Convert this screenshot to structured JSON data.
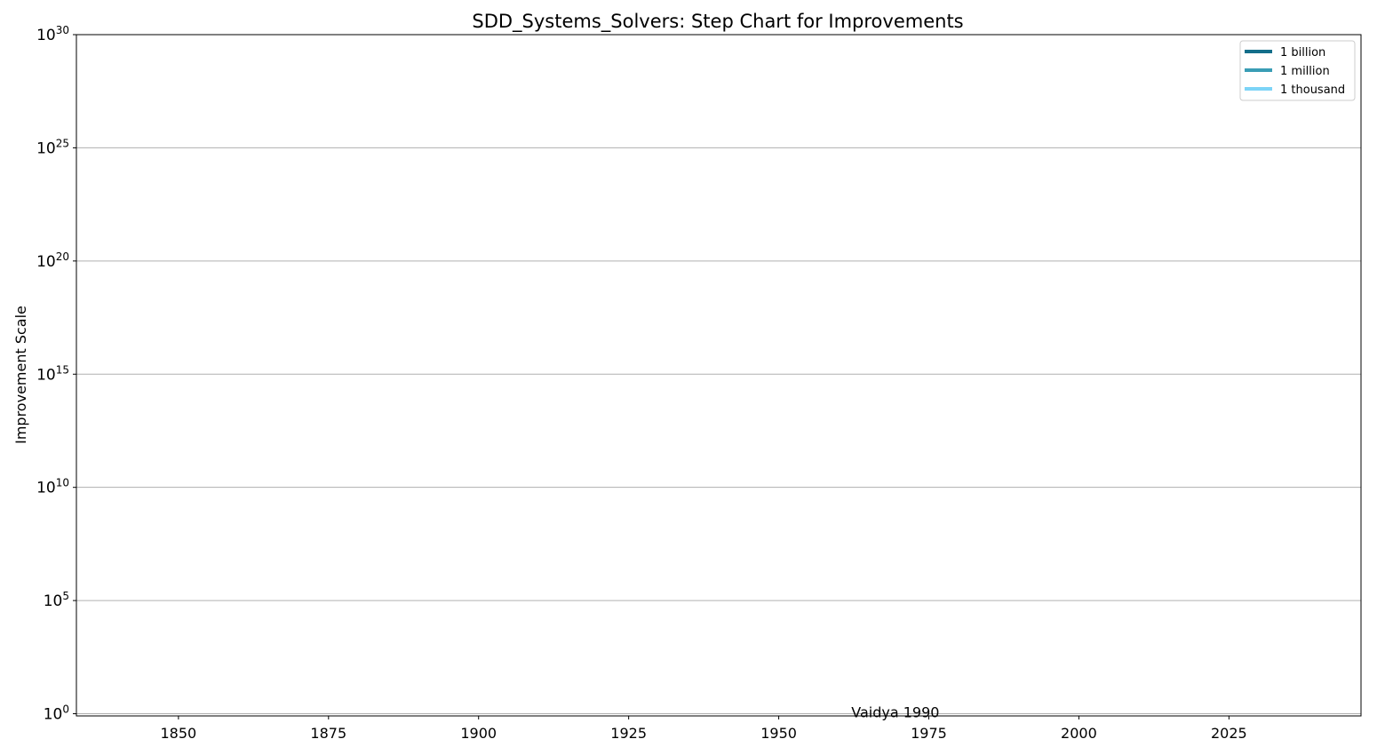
{
  "chart_data": {
    "type": "line",
    "title": "SDD_Systems_Solvers: Step Chart for Improvements",
    "xlabel": "",
    "ylabel": "Improvement Scale",
    "xlim": [
      1833,
      2047
    ],
    "ylim": [
      0.8,
      1e+30
    ],
    "yscale": "log",
    "x_ticks": [
      "1850",
      "1875",
      "1900",
      "1925",
      "1950",
      "1975",
      "2000",
      "2025"
    ],
    "x_tick_values": [
      1850,
      1875,
      1900,
      1925,
      1950,
      1975,
      2000,
      2025
    ],
    "y_tick_exponents": [
      "0",
      "5",
      "10",
      "15",
      "20",
      "25",
      "30"
    ],
    "grid": "horizontal",
    "legend_position": "top-right",
    "legend": [
      {
        "label": "1 billion",
        "color": "#136e8a"
      },
      {
        "label": "1 million",
        "color": "#3a9db5"
      },
      {
        "label": "1 thousand",
        "color": "#7dd4f7"
      }
    ],
    "series": [],
    "annotations": [
      {
        "text": "Vaidya 1990",
        "x": 1990,
        "y": 1
      }
    ]
  }
}
